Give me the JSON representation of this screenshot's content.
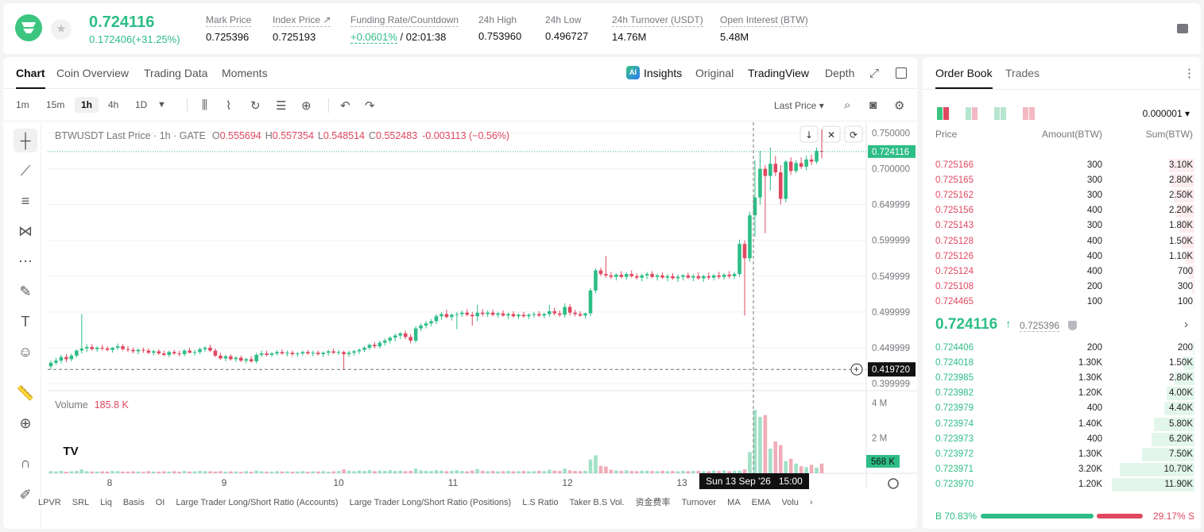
{
  "header": {
    "last_price": "0.724116",
    "change": "0.172406(+31.25%)",
    "stats": [
      {
        "label": "Mark Price",
        "value": "0.725396"
      },
      {
        "label": "Index Price ↗",
        "value": "0.725193"
      },
      {
        "label": "Funding Rate/Countdown",
        "rate": "+0.0601%",
        "countdown": "/ 02:01:38"
      },
      {
        "label": "24h High",
        "value": "0.753960"
      },
      {
        "label": "24h Low",
        "value": "0.496727"
      },
      {
        "label": "24h Turnover (USDT)",
        "value": "14.76M"
      },
      {
        "label": "Open Interest (BTW)",
        "value": "5.48M"
      }
    ]
  },
  "chart_tabs": {
    "left": [
      "Chart",
      "Coin Overview",
      "Trading Data",
      "Moments"
    ],
    "right": [
      "Insights",
      "Original",
      "TradingView",
      "Depth"
    ],
    "ai_badge": "AI"
  },
  "toolbar": {
    "intervals": [
      "1m",
      "15m",
      "1h",
      "4h",
      "1D"
    ],
    "selected_interval": "1h",
    "price_type": "Last Price ▾"
  },
  "legend": {
    "symbol": "BTWUSDT Last Price · 1h · GATE",
    "o_label": "O",
    "o": "0.555694",
    "h_label": "H",
    "h": "0.557354",
    "l_label": "L",
    "l": "0.548514",
    "c_label": "C",
    "c": "0.552483",
    "chg": "-0.003113 (−0.56%)",
    "volume_label": "Volume",
    "volume_value": "185.8 K"
  },
  "chart_data": {
    "type": "candlestick",
    "y_ticks": [
      "0.750000",
      "0.700000",
      "0.649999",
      "0.599999",
      "0.549999",
      "0.499999",
      "0.449999",
      "0.399999"
    ],
    "y_range": [
      0.39,
      0.765
    ],
    "vol_ticks": [
      "4 M",
      "2 M"
    ],
    "vol_range": [
      0,
      4.6
    ],
    "x_ticks": [
      "8",
      "9",
      "10",
      "11",
      "12",
      "13"
    ],
    "last_price_tag": "0.724116",
    "cursor_price_tag": "0.419720",
    "cursor_time_tag": "Sun 13 Sep '26   15:00",
    "vol_tag": "568 K",
    "candles": [
      [
        0.424,
        0.432,
        0.42,
        0.429
      ],
      [
        0.429,
        0.436,
        0.426,
        0.432
      ],
      [
        0.432,
        0.44,
        0.428,
        0.437
      ],
      [
        0.437,
        0.441,
        0.43,
        0.434
      ],
      [
        0.434,
        0.442,
        0.431,
        0.439
      ],
      [
        0.439,
        0.448,
        0.436,
        0.446
      ],
      [
        0.446,
        0.497,
        0.442,
        0.449
      ],
      [
        0.449,
        0.455,
        0.444,
        0.451
      ],
      [
        0.451,
        0.455,
        0.446,
        0.448
      ],
      [
        0.448,
        0.452,
        0.444,
        0.45
      ],
      [
        0.45,
        0.454,
        0.446,
        0.449
      ],
      [
        0.449,
        0.452,
        0.445,
        0.447
      ],
      [
        0.447,
        0.451,
        0.443,
        0.45
      ],
      [
        0.45,
        0.456,
        0.447,
        0.452
      ],
      [
        0.452,
        0.455,
        0.446,
        0.448
      ],
      [
        0.448,
        0.452,
        0.444,
        0.447
      ],
      [
        0.447,
        0.45,
        0.442,
        0.445
      ],
      [
        0.445,
        0.449,
        0.441,
        0.447
      ],
      [
        0.447,
        0.45,
        0.443,
        0.446
      ],
      [
        0.446,
        0.449,
        0.441,
        0.443
      ],
      [
        0.443,
        0.447,
        0.439,
        0.445
      ],
      [
        0.445,
        0.448,
        0.44,
        0.442
      ],
      [
        0.442,
        0.446,
        0.438,
        0.44
      ],
      [
        0.44,
        0.446,
        0.437,
        0.444
      ],
      [
        0.444,
        0.447,
        0.44,
        0.442
      ],
      [
        0.442,
        0.446,
        0.438,
        0.441
      ],
      [
        0.441,
        0.448,
        0.438,
        0.446
      ],
      [
        0.446,
        0.45,
        0.442,
        0.443
      ],
      [
        0.443,
        0.447,
        0.439,
        0.444
      ],
      [
        0.444,
        0.45,
        0.441,
        0.448
      ],
      [
        0.448,
        0.452,
        0.444,
        0.45
      ],
      [
        0.45,
        0.454,
        0.444,
        0.446
      ],
      [
        0.446,
        0.449,
        0.437,
        0.439
      ],
      [
        0.439,
        0.443,
        0.433,
        0.435
      ],
      [
        0.435,
        0.44,
        0.431,
        0.438
      ],
      [
        0.438,
        0.441,
        0.432,
        0.434
      ],
      [
        0.434,
        0.438,
        0.43,
        0.436
      ],
      [
        0.436,
        0.439,
        0.43,
        0.432
      ],
      [
        0.432,
        0.436,
        0.428,
        0.434
      ],
      [
        0.434,
        0.438,
        0.429,
        0.431
      ],
      [
        0.431,
        0.443,
        0.428,
        0.44
      ],
      [
        0.44,
        0.446,
        0.437,
        0.442
      ],
      [
        0.442,
        0.446,
        0.438,
        0.44
      ],
      [
        0.44,
        0.444,
        0.437,
        0.442
      ],
      [
        0.442,
        0.447,
        0.439,
        0.444
      ],
      [
        0.444,
        0.448,
        0.44,
        0.442
      ],
      [
        0.442,
        0.446,
        0.438,
        0.443
      ],
      [
        0.443,
        0.446,
        0.438,
        0.441
      ],
      [
        0.441,
        0.444,
        0.437,
        0.442
      ],
      [
        0.442,
        0.446,
        0.439,
        0.444
      ],
      [
        0.444,
        0.447,
        0.44,
        0.442
      ],
      [
        0.442,
        0.446,
        0.438,
        0.443
      ],
      [
        0.443,
        0.446,
        0.439,
        0.441
      ],
      [
        0.441,
        0.445,
        0.437,
        0.443
      ],
      [
        0.443,
        0.447,
        0.439,
        0.445
      ],
      [
        0.445,
        0.449,
        0.441,
        0.443
      ],
      [
        0.443,
        0.447,
        0.44,
        0.444
      ],
      [
        0.444,
        0.446,
        0.419,
        0.441
      ],
      [
        0.441,
        0.446,
        0.437,
        0.443
      ],
      [
        0.443,
        0.447,
        0.439,
        0.445
      ],
      [
        0.445,
        0.449,
        0.441,
        0.447
      ],
      [
        0.447,
        0.452,
        0.444,
        0.45
      ],
      [
        0.45,
        0.456,
        0.447,
        0.454
      ],
      [
        0.454,
        0.458,
        0.449,
        0.452
      ],
      [
        0.452,
        0.46,
        0.449,
        0.457
      ],
      [
        0.457,
        0.463,
        0.453,
        0.46
      ],
      [
        0.46,
        0.466,
        0.456,
        0.464
      ],
      [
        0.464,
        0.47,
        0.459,
        0.467
      ],
      [
        0.467,
        0.472,
        0.462,
        0.47
      ],
      [
        0.47,
        0.474,
        0.462,
        0.465
      ],
      [
        0.465,
        0.469,
        0.456,
        0.46
      ],
      [
        0.46,
        0.48,
        0.457,
        0.477
      ],
      [
        0.477,
        0.484,
        0.473,
        0.481
      ],
      [
        0.481,
        0.487,
        0.477,
        0.484
      ],
      [
        0.484,
        0.49,
        0.48,
        0.487
      ],
      [
        0.487,
        0.497,
        0.483,
        0.494
      ],
      [
        0.494,
        0.5,
        0.489,
        0.497
      ],
      [
        0.497,
        0.503,
        0.491,
        0.493
      ],
      [
        0.493,
        0.498,
        0.488,
        0.496
      ],
      [
        0.496,
        0.5,
        0.476,
        0.497
      ],
      [
        0.497,
        0.502,
        0.493,
        0.499
      ],
      [
        0.499,
        0.504,
        0.494,
        0.496
      ],
      [
        0.496,
        0.5,
        0.481,
        0.494
      ],
      [
        0.494,
        0.51,
        0.487,
        0.499
      ],
      [
        0.499,
        0.504,
        0.494,
        0.497
      ],
      [
        0.497,
        0.502,
        0.493,
        0.499
      ],
      [
        0.499,
        0.503,
        0.494,
        0.496
      ],
      [
        0.496,
        0.5,
        0.492,
        0.498
      ],
      [
        0.498,
        0.502,
        0.493,
        0.495
      ],
      [
        0.495,
        0.499,
        0.49,
        0.497
      ],
      [
        0.497,
        0.501,
        0.492,
        0.494
      ],
      [
        0.494,
        0.498,
        0.49,
        0.496
      ],
      [
        0.496,
        0.5,
        0.492,
        0.494
      ],
      [
        0.494,
        0.498,
        0.49,
        0.496
      ],
      [
        0.496,
        0.5,
        0.492,
        0.497
      ],
      [
        0.497,
        0.501,
        0.493,
        0.495
      ],
      [
        0.495,
        0.499,
        0.491,
        0.497
      ],
      [
        0.497,
        0.51,
        0.493,
        0.501
      ],
      [
        0.501,
        0.506,
        0.495,
        0.498
      ],
      [
        0.498,
        0.502,
        0.493,
        0.496
      ],
      [
        0.496,
        0.512,
        0.492,
        0.507
      ],
      [
        0.507,
        0.511,
        0.495,
        0.499
      ],
      [
        0.499,
        0.503,
        0.494,
        0.497
      ],
      [
        0.497,
        0.501,
        0.493,
        0.495
      ],
      [
        0.495,
        0.499,
        0.491,
        0.498
      ],
      [
        0.498,
        0.533,
        0.494,
        0.53
      ],
      [
        0.53,
        0.561,
        0.526,
        0.558
      ],
      [
        0.558,
        0.562,
        0.55,
        0.553
      ],
      [
        0.553,
        0.578,
        0.548,
        0.551
      ],
      [
        0.551,
        0.556,
        0.546,
        0.549
      ],
      [
        0.549,
        0.554,
        0.544,
        0.552
      ],
      [
        0.552,
        0.557,
        0.547,
        0.549
      ],
      [
        0.549,
        0.555,
        0.545,
        0.553
      ],
      [
        0.553,
        0.558,
        0.548,
        0.55
      ],
      [
        0.55,
        0.554,
        0.545,
        0.548
      ],
      [
        0.548,
        0.553,
        0.543,
        0.551
      ],
      [
        0.551,
        0.556,
        0.546,
        0.553
      ],
      [
        0.553,
        0.557,
        0.547,
        0.549
      ],
      [
        0.549,
        0.553,
        0.544,
        0.551
      ],
      [
        0.551,
        0.555,
        0.546,
        0.548
      ],
      [
        0.548,
        0.553,
        0.543,
        0.55
      ],
      [
        0.55,
        0.554,
        0.545,
        0.547
      ],
      [
        0.547,
        0.552,
        0.542,
        0.549
      ],
      [
        0.549,
        0.553,
        0.544,
        0.551
      ],
      [
        0.551,
        0.555,
        0.546,
        0.548
      ],
      [
        0.548,
        0.553,
        0.543,
        0.55
      ],
      [
        0.55,
        0.555,
        0.545,
        0.547
      ],
      [
        0.547,
        0.552,
        0.542,
        0.55
      ],
      [
        0.55,
        0.555,
        0.545,
        0.548
      ],
      [
        0.548,
        0.553,
        0.544,
        0.551
      ],
      [
        0.551,
        0.556,
        0.546,
        0.549
      ],
      [
        0.549,
        0.554,
        0.545,
        0.552
      ],
      [
        0.552,
        0.557,
        0.547,
        0.55
      ],
      [
        0.55,
        0.556,
        0.546,
        0.553
      ],
      [
        0.553,
        0.601,
        0.549,
        0.595
      ],
      [
        0.595,
        0.6,
        0.495,
        0.575
      ],
      [
        0.575,
        0.64,
        0.57,
        0.635
      ],
      [
        0.635,
        0.712,
        0.605,
        0.66
      ],
      [
        0.66,
        0.725,
        0.65,
        0.7
      ],
      [
        0.7,
        0.705,
        0.61,
        0.69
      ],
      [
        0.69,
        0.73,
        0.67,
        0.707
      ],
      [
        0.707,
        0.718,
        0.69,
        0.695
      ],
      [
        0.695,
        0.705,
        0.65,
        0.658
      ],
      [
        0.658,
        0.712,
        0.653,
        0.71
      ],
      [
        0.71,
        0.716,
        0.692,
        0.697
      ],
      [
        0.697,
        0.712,
        0.694,
        0.708
      ],
      [
        0.708,
        0.716,
        0.7,
        0.703
      ],
      [
        0.703,
        0.718,
        0.698,
        0.713
      ],
      [
        0.713,
        0.72,
        0.705,
        0.71
      ],
      [
        0.71,
        0.73,
        0.707,
        0.725
      ],
      [
        0.725,
        0.755,
        0.715,
        0.724
      ]
    ],
    "volumes": [
      0.12,
      0.1,
      0.14,
      0.09,
      0.11,
      0.13,
      0.22,
      0.12,
      0.1,
      0.09,
      0.11,
      0.1,
      0.13,
      0.12,
      0.1,
      0.09,
      0.11,
      0.1,
      0.08,
      0.12,
      0.1,
      0.09,
      0.11,
      0.1,
      0.12,
      0.09,
      0.13,
      0.1,
      0.11,
      0.14,
      0.12,
      0.11,
      0.1,
      0.12,
      0.09,
      0.11,
      0.1,
      0.08,
      0.12,
      0.09,
      0.15,
      0.11,
      0.1,
      0.09,
      0.12,
      0.1,
      0.11,
      0.09,
      0.1,
      0.12,
      0.09,
      0.11,
      0.1,
      0.12,
      0.09,
      0.11,
      0.13,
      0.22,
      0.14,
      0.12,
      0.16,
      0.13,
      0.18,
      0.12,
      0.15,
      0.14,
      0.17,
      0.13,
      0.15,
      0.12,
      0.14,
      0.26,
      0.16,
      0.14,
      0.13,
      0.18,
      0.15,
      0.12,
      0.14,
      0.17,
      0.13,
      0.11,
      0.15,
      0.24,
      0.14,
      0.12,
      0.13,
      0.11,
      0.12,
      0.13,
      0.11,
      0.12,
      0.13,
      0.11,
      0.12,
      0.14,
      0.12,
      0.2,
      0.15,
      0.13,
      0.26,
      0.17,
      0.13,
      0.12,
      0.14,
      0.78,
      1.02,
      0.42,
      0.38,
      0.2,
      0.16,
      0.14,
      0.17,
      0.13,
      0.12,
      0.14,
      0.15,
      0.13,
      0.12,
      0.14,
      0.12,
      0.13,
      0.11,
      0.14,
      0.12,
      0.13,
      0.14,
      0.12,
      0.11,
      0.15,
      0.13,
      0.16,
      0.12,
      0.14,
      0.15,
      0.22,
      1.2,
      3.6,
      3.2,
      3.3,
      1.4,
      1.8,
      1.6,
      0.7,
      0.82,
      0.55,
      0.4,
      0.35,
      0.48,
      0.32,
      0.55
    ]
  },
  "indicator_bar": [
    "LPVR",
    "SRL",
    "Liq",
    "Basis",
    "OI",
    "Large Trader Long/Short Ratio (Accounts)",
    "Large Trader Long/Short Ratio (Positions)",
    "L.S Ratio",
    "Taker B.S Vol.",
    "资金费率",
    "Turnover",
    "MA",
    "EMA",
    "Volu"
  ],
  "orderbook": {
    "tabs": [
      "Order Book",
      "Trades"
    ],
    "precision": "0.000001 ▾",
    "headers": [
      "Price",
      "Amount(BTW)",
      "Sum(BTW)"
    ],
    "asks": [
      {
        "price": "0.725166",
        "amount": "300",
        "sum": "3.10K",
        "depth": 0.31
      },
      {
        "price": "0.725165",
        "amount": "300",
        "sum": "2.80K",
        "depth": 0.28
      },
      {
        "price": "0.725162",
        "amount": "300",
        "sum": "2.50K",
        "depth": 0.25
      },
      {
        "price": "0.725156",
        "amount": "400",
        "sum": "2.20K",
        "depth": 0.22
      },
      {
        "price": "0.725143",
        "amount": "300",
        "sum": "1.80K",
        "depth": 0.18
      },
      {
        "price": "0.725128",
        "amount": "400",
        "sum": "1.50K",
        "depth": 0.15
      },
      {
        "price": "0.725126",
        "amount": "400",
        "sum": "1.10K",
        "depth": 0.11
      },
      {
        "price": "0.725124",
        "amount": "400",
        "sum": "700",
        "depth": 0.07
      },
      {
        "price": "0.725108",
        "amount": "200",
        "sum": "300",
        "depth": 0.03
      },
      {
        "price": "0.724465",
        "amount": "100",
        "sum": "100",
        "depth": 0.01
      }
    ],
    "mid_price": "0.724116",
    "mid_arrow": "↑",
    "mark_price": "0.725396",
    "bids": [
      {
        "price": "0.724406",
        "amount": "200",
        "sum": "200",
        "depth": 0.02
      },
      {
        "price": "0.724018",
        "amount": "1.30K",
        "sum": "1.50K",
        "depth": 0.13
      },
      {
        "price": "0.723985",
        "amount": "1.30K",
        "sum": "2.80K",
        "depth": 0.24
      },
      {
        "price": "0.723982",
        "amount": "1.20K",
        "sum": "4.00K",
        "depth": 0.34
      },
      {
        "price": "0.723979",
        "amount": "400",
        "sum": "4.40K",
        "depth": 0.37
      },
      {
        "price": "0.723974",
        "amount": "1.40K",
        "sum": "5.80K",
        "depth": 0.49
      },
      {
        "price": "0.723973",
        "amount": "400",
        "sum": "6.20K",
        "depth": 0.52
      },
      {
        "price": "0.723972",
        "amount": "1.30K",
        "sum": "7.50K",
        "depth": 0.63
      },
      {
        "price": "0.723971",
        "amount": "3.20K",
        "sum": "10.70K",
        "depth": 0.9
      },
      {
        "price": "0.723970",
        "amount": "1.20K",
        "sum": "11.90K",
        "depth": 1.0
      }
    ],
    "buy_ratio": "B 70.83%",
    "sell_ratio": "29.17% S",
    "buy_fraction": 0.7083
  },
  "colors": {
    "up": "#2dbd86",
    "down": "#e0485f"
  }
}
